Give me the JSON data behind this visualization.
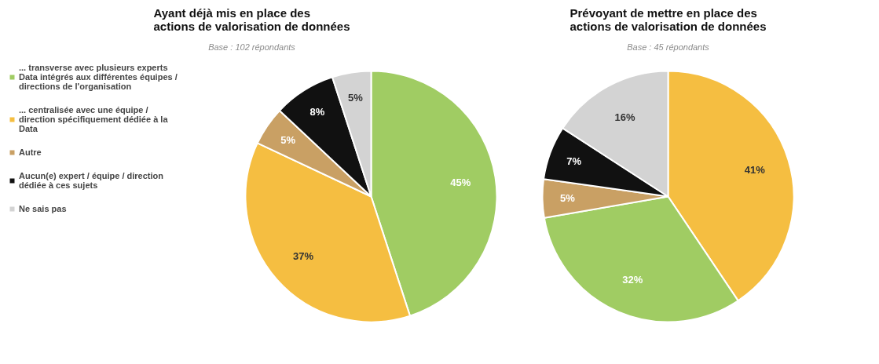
{
  "chart_data": [
    {
      "type": "pie",
      "title": "Ayant déjà mis en place des\nactions de valorisation de données",
      "subtitle": "Base : 102 répondants",
      "categories": [
        "... transverse avec plusieurs experts Data intégrés aux différentes équipes / directions de l'organisation",
        "... centralisée avec une équipe / direction spécifiquement dédiée à la Data",
        "Autre",
        "Aucun(e) expert / équipe / direction dédiée à ces sujets",
        "Ne sais pas"
      ],
      "values": [
        45,
        37,
        5,
        8,
        5
      ],
      "colors": [
        "#a0cc63",
        "#f5be41",
        "#c9a064",
        "#111111",
        "#d3d3d3"
      ],
      "value_labels": [
        "45%",
        "37%",
        "5%",
        "8%",
        "5%"
      ],
      "legend": "left"
    },
    {
      "type": "pie",
      "title": "Prévoyant de mettre en place des\nactions de valorisation de données",
      "subtitle": "Base : 45 répondants",
      "categories": [
        null,
        null,
        null,
        null,
        null
      ],
      "values": [
        41,
        32,
        5,
        7,
        16
      ],
      "colors": [
        "#f5be41",
        "#a0cc63",
        "#c9a064",
        "#111111",
        "#d3d3d3"
      ],
      "value_labels": [
        "41%",
        "32%",
        "5%",
        "7%",
        "16%"
      ],
      "legend": false
    }
  ]
}
